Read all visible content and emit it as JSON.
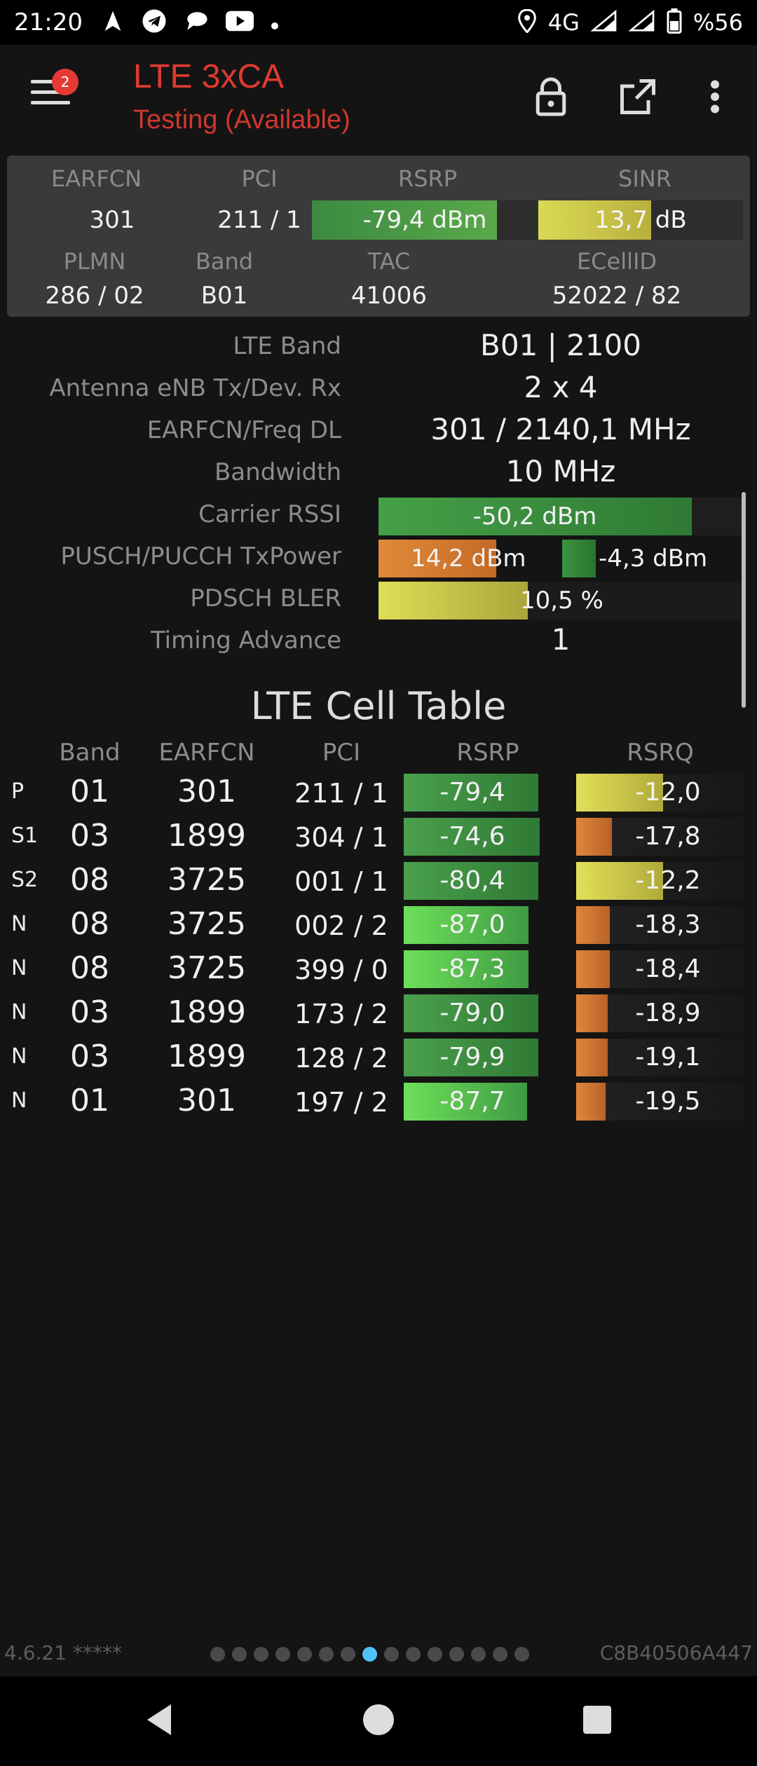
{
  "status_bar": {
    "time": "21:20",
    "left_icons": [
      "navigation-icon",
      "telegram-icon",
      "chat-icon",
      "youtube-icon",
      "dot-icon"
    ],
    "network": "4G",
    "battery": "%56"
  },
  "app_bar": {
    "title": "LTE 3xCA",
    "subtitle": "Testing (Available)",
    "notification_count": "2",
    "icons": [
      "menu-icon",
      "lock-icon",
      "external-link-icon",
      "more-vert-icon"
    ]
  },
  "summary": {
    "labels": {
      "earfcn": "EARFCN",
      "pci": "PCI",
      "rsrp": "RSRP",
      "sinr": "SINR",
      "plmn": "PLMN",
      "band": "Band",
      "tac": "TAC",
      "ecellid": "ECellID"
    },
    "earfcn": "301",
    "pci": "211 / 1",
    "rsrp": "-79,4 dBm",
    "rsrp_level": 0.82,
    "sinr": "13,7 dB",
    "sinr_level": 0.55,
    "plmn": "286 / 02",
    "band": "B01",
    "tac": "41006",
    "ecellid": "52022 / 82"
  },
  "details": {
    "lte_band_label": "LTE Band",
    "lte_band": "B01 | 2100",
    "antenna_label": "Antenna eNB Tx/Dev. Rx",
    "antenna": "2 x 4",
    "earfcn_freq_label": "EARFCN/Freq DL",
    "earfcn_freq": "301 / 2140,1 MHz",
    "bandwidth_label": "Bandwidth",
    "bandwidth": "10 MHz",
    "carrier_rssi_label": "Carrier RSSI",
    "carrier_rssi": "-50,2 dBm",
    "carrier_rssi_level": 0.86,
    "txpower_label": "PUSCH/PUCCH TxPower",
    "pusch_txpower": "14,2 dBm",
    "pusch_level": 0.7,
    "pucch_txpower": "-4,3 dBm",
    "pucch_level": 0.32,
    "bler_label": "PDSCH BLER",
    "bler": "10,5 %",
    "bler_level": 0.41,
    "timing_advance_label": "Timing Advance",
    "timing_advance": "1"
  },
  "cell_table": {
    "title": "LTE Cell Table",
    "headers": {
      "band": "Band",
      "earfcn": "EARFCN",
      "pci": "PCI",
      "rsrp": "RSRP",
      "rsrq": "RSRQ"
    },
    "rows": [
      {
        "type": "P",
        "band": "01",
        "earfcn": "301",
        "pci": "211 / 1",
        "rsrp": "-79,4",
        "rsrp_level": 0.98,
        "rsrq": "-12,0",
        "rsrq_level": 0.32,
        "rsrq_color": "yellow"
      },
      {
        "type": "S1",
        "band": "03",
        "earfcn": "1899",
        "pci": "304 / 1",
        "rsrp": "-74,6",
        "rsrp_level": 0.99,
        "rsrq": "-17,8",
        "rsrq_level": 0.17,
        "rsrq_color": "orange"
      },
      {
        "type": "S2",
        "band": "08",
        "earfcn": "3725",
        "pci": "001 / 1",
        "rsrp": "-80,4",
        "rsrp_level": 0.98,
        "rsrq": "-12,2",
        "rsrq_level": 0.31,
        "rsrq_color": "yellow"
      },
      {
        "type": "N",
        "band": "08",
        "earfcn": "3725",
        "pci": "002 / 2",
        "rsrp": "-87,0",
        "rsrp_level": 0.91,
        "rsrq": "-18,3",
        "rsrq_level": 0.16,
        "rsrq_color": "orange"
      },
      {
        "type": "N",
        "band": "08",
        "earfcn": "3725",
        "pci": "399 / 0",
        "rsrp": "-87,3",
        "rsrp_level": 0.91,
        "rsrq": "-18,4",
        "rsrq_level": 0.16,
        "rsrq_color": "orange"
      },
      {
        "type": "N",
        "band": "03",
        "earfcn": "1899",
        "pci": "173 / 2",
        "rsrp": "-79,0",
        "rsrp_level": 0.98,
        "rsrq": "-18,9",
        "rsrq_level": 0.15,
        "rsrq_color": "orange"
      },
      {
        "type": "N",
        "band": "03",
        "earfcn": "1899",
        "pci": "128 / 2",
        "rsrp": "-79,9",
        "rsrp_level": 0.98,
        "rsrq": "-19,1",
        "rsrq_level": 0.15,
        "rsrq_color": "orange"
      },
      {
        "type": "N",
        "band": "01",
        "earfcn": "301",
        "pci": "197 / 2",
        "rsrp": "-87,7",
        "rsrp_level": 0.9,
        "rsrq": "-19,5",
        "rsrq_level": 0.14,
        "rsrq_color": "orange"
      }
    ]
  },
  "footer": {
    "version": "4.6.21 *****",
    "page_count": 15,
    "active_page": 8,
    "device_id": "C8B40506A447"
  },
  "nav": {
    "back": "back-icon",
    "home": "home-icon",
    "recents": "recents-icon"
  },
  "colors": {
    "title_red": "#e03a30",
    "green_dark": "#3a8a3f",
    "green_light": "#7ed957",
    "yellow": "#c9c94a",
    "orange": "#d97a2e",
    "page_dot_active": "#4fc3f7"
  }
}
